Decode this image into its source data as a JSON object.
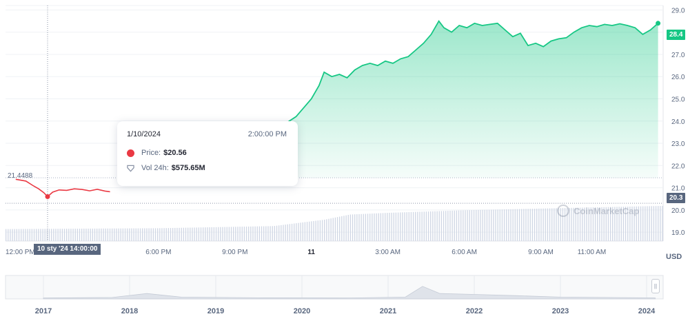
{
  "chart_data": {
    "type": "area",
    "currency": "USD",
    "y_axis": {
      "ylim": [
        18.6,
        29.2
      ],
      "ticks": [
        "19.0",
        "20.0",
        "21.0",
        "22.0",
        "23.0",
        "24.0",
        "25.0",
        "26.0",
        "27.0",
        "28.0",
        "29.0"
      ]
    },
    "x_axis": {
      "labels": [
        {
          "label": "12:00 PM",
          "hour": 0
        },
        {
          "label": "6:00 PM",
          "hour": 6
        },
        {
          "label": "9:00 PM",
          "hour": 9
        },
        {
          "label": "11",
          "hour": 12,
          "bold": true
        },
        {
          "label": "3:00 AM",
          "hour": 15
        },
        {
          "label": "6:00 AM",
          "hour": 18
        },
        {
          "label": "9:00 AM",
          "hour": 21
        },
        {
          "label": "11:00 AM",
          "hour": 23
        }
      ]
    },
    "start_price": "21.4488",
    "start_price_value": 21.4488,
    "last_price": "28.4",
    "last_price_value": 28.4,
    "hover_price": "20.3",
    "hover_price_value": 20.3,
    "crosshair_hour": 1.65,
    "crosshair_label": "10 sty '24 14:00:00",
    "colors": {
      "up": "#16c784",
      "down": "#ea3943",
      "grid": "#eff2f5",
      "volume": "#cfd6e4"
    },
    "price_series": [
      [
        0.4,
        21.38
      ],
      [
        0.8,
        21.3
      ],
      [
        1.1,
        21.08
      ],
      [
        1.3,
        20.95
      ],
      [
        1.5,
        20.78
      ],
      [
        1.65,
        20.6
      ],
      [
        1.85,
        20.8
      ],
      [
        2.1,
        20.9
      ],
      [
        2.4,
        20.88
      ],
      [
        2.7,
        20.95
      ],
      [
        3.0,
        20.92
      ],
      [
        3.3,
        20.86
      ],
      [
        3.6,
        20.93
      ],
      [
        3.9,
        20.85
      ],
      [
        4.1,
        20.82
      ],
      [
        9.8,
        22.2
      ],
      [
        10.2,
        22.7
      ],
      [
        10.6,
        23.0
      ],
      [
        11.0,
        23.9
      ],
      [
        11.4,
        24.2
      ],
      [
        11.7,
        24.6
      ],
      [
        12.0,
        25.0
      ],
      [
        12.3,
        25.6
      ],
      [
        12.5,
        26.2
      ],
      [
        12.8,
        26.0
      ],
      [
        13.1,
        26.1
      ],
      [
        13.4,
        25.95
      ],
      [
        13.7,
        26.3
      ],
      [
        14.0,
        26.5
      ],
      [
        14.3,
        26.6
      ],
      [
        14.6,
        26.5
      ],
      [
        14.9,
        26.7
      ],
      [
        15.2,
        26.6
      ],
      [
        15.5,
        26.8
      ],
      [
        15.8,
        26.9
      ],
      [
        16.1,
        27.2
      ],
      [
        16.4,
        27.5
      ],
      [
        16.7,
        27.9
      ],
      [
        17.0,
        28.5
      ],
      [
        17.2,
        28.2
      ],
      [
        17.5,
        28.0
      ],
      [
        17.8,
        28.3
      ],
      [
        18.1,
        28.2
      ],
      [
        18.4,
        28.4
      ],
      [
        18.7,
        28.3
      ],
      [
        19.0,
        28.35
      ],
      [
        19.3,
        28.4
      ],
      [
        19.6,
        28.1
      ],
      [
        19.9,
        27.8
      ],
      [
        20.2,
        27.95
      ],
      [
        20.5,
        27.4
      ],
      [
        20.8,
        27.5
      ],
      [
        21.1,
        27.35
      ],
      [
        21.4,
        27.6
      ],
      [
        21.7,
        27.7
      ],
      [
        22.0,
        27.75
      ],
      [
        22.3,
        28.0
      ],
      [
        22.6,
        28.2
      ],
      [
        22.9,
        28.3
      ],
      [
        23.2,
        28.25
      ],
      [
        23.5,
        28.35
      ],
      [
        23.8,
        28.3
      ],
      [
        24.1,
        28.38
      ],
      [
        24.4,
        28.3
      ],
      [
        24.7,
        28.2
      ],
      [
        25.0,
        27.9
      ],
      [
        25.3,
        28.1
      ],
      [
        25.6,
        28.4
      ]
    ],
    "volume_series": [
      [
        0,
        0.28
      ],
      [
        6,
        0.3
      ],
      [
        10.5,
        0.35
      ],
      [
        12.5,
        0.5
      ],
      [
        13.5,
        0.62
      ],
      [
        15,
        0.66
      ],
      [
        18,
        0.72
      ],
      [
        21,
        0.76
      ],
      [
        24,
        0.8
      ],
      [
        25.6,
        0.82
      ]
    ],
    "navigator": {
      "years": [
        "2017",
        "2018",
        "2019",
        "2020",
        "2021",
        "2022",
        "2023",
        "2024"
      ],
      "series": [
        [
          0,
          0.05
        ],
        [
          0.8,
          0.08
        ],
        [
          1.2,
          0.3
        ],
        [
          1.6,
          0.1
        ],
        [
          2.5,
          0.06
        ],
        [
          3.5,
          0.05
        ],
        [
          4.2,
          0.1
        ],
        [
          4.4,
          0.7
        ],
        [
          4.6,
          0.3
        ],
        [
          5.0,
          0.25
        ],
        [
          5.5,
          0.18
        ],
        [
          6.0,
          0.1
        ],
        [
          6.5,
          0.08
        ],
        [
          7.0,
          0.06
        ],
        [
          7.1,
          0.05
        ]
      ]
    }
  },
  "tooltip": {
    "date": "1/10/2024",
    "time": "2:00:00 PM",
    "price_label": "Price:",
    "price_value": "$20.56",
    "vol_label": "Vol 24h:",
    "vol_value": "$575.65M"
  },
  "watermark": "CoinMarketCap",
  "icons": {
    "price_dot": "red-dot-icon",
    "volume": "volume-shield-icon",
    "navigator_handle": "drag-handle-icon"
  }
}
